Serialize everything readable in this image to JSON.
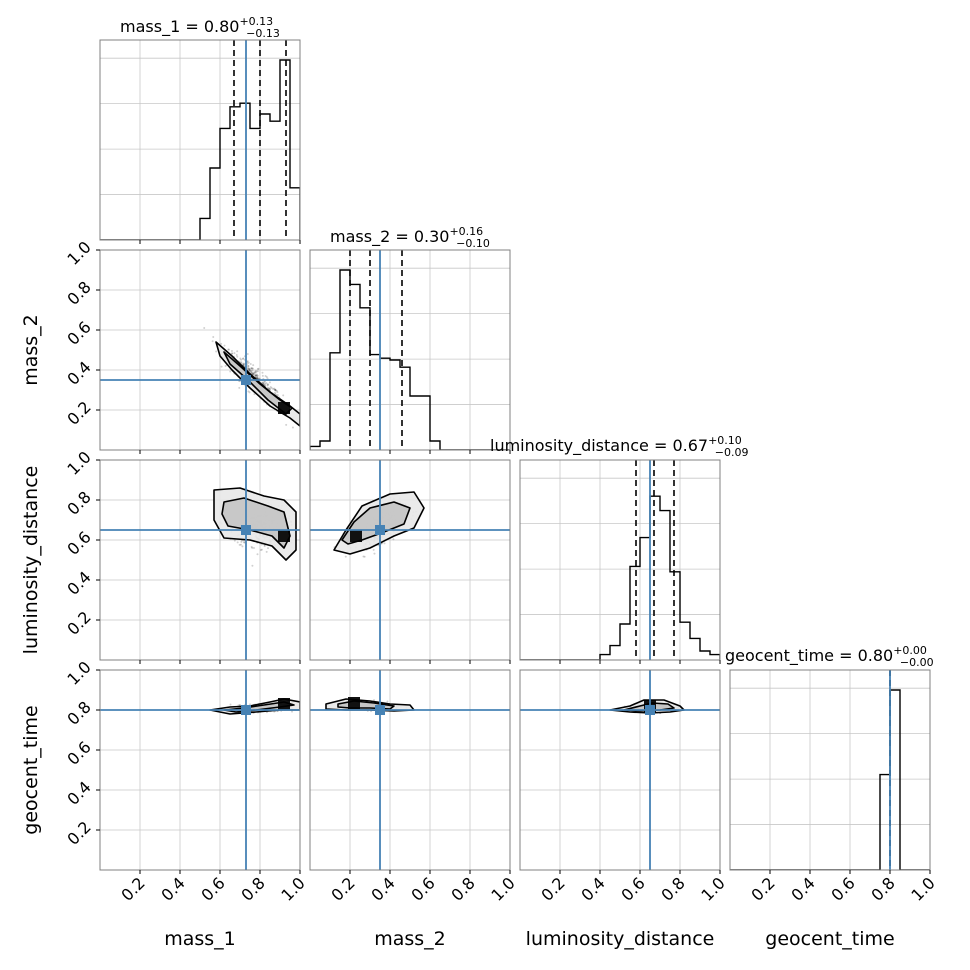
{
  "chart_data": {
    "type": "corner",
    "parameters": [
      "mass_1",
      "mass_2",
      "luminosity_distance",
      "geocent_time"
    ],
    "axis_range": [
      0.0,
      1.0
    ],
    "tick_values": [
      0.2,
      0.4,
      0.6,
      0.8,
      1.0
    ],
    "tick_labels": [
      "0.2",
      "0.4",
      "0.6",
      "0.8",
      "1.0"
    ],
    "grid": true,
    "truths": [
      0.73,
      0.35,
      0.65,
      0.8
    ],
    "colors": {
      "truth": "#4682b4",
      "hist": "#000000",
      "grid": "#c8c8c8",
      "frame": "#808080",
      "density_dark": "#000000",
      "density_light": "#f0f0f0"
    },
    "titles": [
      {
        "name": "mass_1",
        "median": "0.80",
        "plus": "+0.13",
        "minus": "−0.13"
      },
      {
        "name": "mass_2",
        "median": "0.30",
        "plus": "+0.16",
        "minus": "−0.10"
      },
      {
        "name": "luminosity_distance",
        "median": "0.67",
        "plus": "+0.10",
        "minus": "−0.09"
      },
      {
        "name": "geocent_time",
        "median": "0.80",
        "plus": "+0.00",
        "minus": "−0.00"
      }
    ],
    "diagonal": [
      {
        "param": "mass_1",
        "bin_edges": [
          0.5,
          0.55,
          0.6,
          0.65,
          0.7,
          0.75,
          0.8,
          0.85,
          0.9,
          0.95,
          1.0
        ],
        "heights": [
          0.12,
          0.4,
          0.62,
          0.74,
          0.76,
          0.62,
          0.7,
          0.66,
          1.0,
          0.29
        ],
        "quantiles": [
          0.67,
          0.8,
          0.93
        ]
      },
      {
        "param": "mass_2",
        "bin_edges": [
          0.0,
          0.05,
          0.1,
          0.15,
          0.2,
          0.25,
          0.3,
          0.35,
          0.4,
          0.45,
          0.5,
          0.55,
          0.6,
          0.65
        ],
        "heights": [
          0.02,
          0.05,
          0.54,
          1.0,
          0.92,
          0.79,
          0.53,
          0.51,
          0.5,
          0.46,
          0.3,
          0.3,
          0.05
        ],
        "quantiles": [
          0.2,
          0.3,
          0.46
        ]
      },
      {
        "param": "luminosity_distance",
        "bin_edges": [
          0.4,
          0.45,
          0.5,
          0.55,
          0.6,
          0.65,
          0.7,
          0.75,
          0.8,
          0.85,
          0.9,
          0.95,
          1.0
        ],
        "heights": [
          0.03,
          0.08,
          0.2,
          0.52,
          0.68,
          0.91,
          0.83,
          0.49,
          0.21,
          0.12,
          0.05,
          0.03
        ],
        "quantiles": [
          0.58,
          0.67,
          0.77
        ]
      },
      {
        "param": "geocent_time",
        "bin_edges": [
          0.75,
          0.8,
          0.85
        ],
        "heights": [
          0.53,
          1.0
        ],
        "quantiles": [
          0.8,
          0.8,
          0.8
        ]
      }
    ],
    "pairs": [
      {
        "x": "mass_1",
        "y": "mass_2",
        "points_center": [
          0.77,
          0.35
        ],
        "points_spread": [
          0.13,
          0.13
        ],
        "points_corr": -0.9,
        "contours": [
          [
            [
              0.58,
              0.54
            ],
            [
              0.66,
              0.47
            ],
            [
              0.75,
              0.38
            ],
            [
              0.85,
              0.29
            ],
            [
              0.95,
              0.22
            ],
            [
              1.0,
              0.18
            ],
            [
              1.0,
              0.12
            ],
            [
              0.95,
              0.16
            ],
            [
              0.85,
              0.22
            ],
            [
              0.75,
              0.31
            ],
            [
              0.66,
              0.4
            ],
            [
              0.6,
              0.47
            ]
          ],
          [
            [
              0.62,
              0.49
            ],
            [
              0.7,
              0.42
            ],
            [
              0.8,
              0.33
            ],
            [
              0.9,
              0.25
            ],
            [
              0.96,
              0.21
            ],
            [
              0.93,
              0.18
            ],
            [
              0.84,
              0.25
            ],
            [
              0.74,
              0.35
            ],
            [
              0.65,
              0.43
            ]
          ]
        ],
        "density_center": [
          0.92,
          0.21
        ]
      },
      {
        "x": "mass_1",
        "y": "luminosity_distance",
        "points_center": [
          0.8,
          0.67
        ],
        "points_spread": [
          0.12,
          0.09
        ],
        "points_corr": 0.0,
        "contours": [
          [
            [
              0.57,
              0.85
            ],
            [
              0.7,
              0.86
            ],
            [
              0.82,
              0.82
            ],
            [
              0.92,
              0.8
            ],
            [
              0.98,
              0.74
            ],
            [
              0.98,
              0.55
            ],
            [
              0.93,
              0.5
            ],
            [
              0.86,
              0.57
            ],
            [
              0.75,
              0.6
            ],
            [
              0.62,
              0.61
            ],
            [
              0.57,
              0.7
            ]
          ],
          [
            [
              0.62,
              0.79
            ],
            [
              0.72,
              0.81
            ],
            [
              0.84,
              0.77
            ],
            [
              0.92,
              0.74
            ],
            [
              0.95,
              0.62
            ],
            [
              0.92,
              0.56
            ],
            [
              0.86,
              0.62
            ],
            [
              0.75,
              0.65
            ],
            [
              0.64,
              0.67
            ],
            [
              0.61,
              0.73
            ]
          ]
        ],
        "density_center": [
          0.92,
          0.62
        ]
      },
      {
        "x": "mass_2",
        "y": "luminosity_distance",
        "points_center": [
          0.35,
          0.67
        ],
        "points_spread": [
          0.11,
          0.09
        ],
        "points_corr": 0.6,
        "contours": [
          [
            [
              0.12,
              0.55
            ],
            [
              0.18,
              0.65
            ],
            [
              0.26,
              0.77
            ],
            [
              0.4,
              0.83
            ],
            [
              0.52,
              0.84
            ],
            [
              0.57,
              0.76
            ],
            [
              0.52,
              0.66
            ],
            [
              0.42,
              0.62
            ],
            [
              0.3,
              0.56
            ],
            [
              0.2,
              0.53
            ]
          ],
          [
            [
              0.16,
              0.6
            ],
            [
              0.22,
              0.69
            ],
            [
              0.3,
              0.76
            ],
            [
              0.42,
              0.79
            ],
            [
              0.5,
              0.76
            ],
            [
              0.47,
              0.68
            ],
            [
              0.37,
              0.64
            ],
            [
              0.26,
              0.6
            ],
            [
              0.19,
              0.58
            ]
          ]
        ],
        "density_center": [
          0.23,
          0.62
        ]
      },
      {
        "x": "mass_1",
        "y": "geocent_time",
        "points_center": [
          0.82,
          0.81
        ],
        "points_spread": [
          0.09,
          0.015
        ],
        "points_corr": 0.0,
        "contours": [
          [
            [
              0.55,
              0.8
            ],
            [
              0.65,
              0.815
            ],
            [
              0.75,
              0.82
            ],
            [
              0.85,
              0.84
            ],
            [
              0.92,
              0.855
            ],
            [
              1.0,
              0.84
            ],
            [
              1.0,
              0.8
            ],
            [
              0.9,
              0.8
            ],
            [
              0.78,
              0.79
            ],
            [
              0.65,
              0.78
            ]
          ],
          [
            [
              0.62,
              0.8
            ],
            [
              0.72,
              0.81
            ],
            [
              0.82,
              0.825
            ],
            [
              0.92,
              0.84
            ],
            [
              0.97,
              0.825
            ],
            [
              0.9,
              0.815
            ],
            [
              0.78,
              0.8
            ],
            [
              0.68,
              0.79
            ]
          ]
        ],
        "density_center": [
          0.92,
          0.83
        ]
      },
      {
        "x": "mass_2",
        "y": "geocent_time",
        "points_center": [
          0.3,
          0.82
        ],
        "points_spread": [
          0.1,
          0.015
        ],
        "points_corr": 0.0,
        "contours": [
          [
            [
              0.08,
              0.83
            ],
            [
              0.18,
              0.855
            ],
            [
              0.3,
              0.845
            ],
            [
              0.4,
              0.83
            ],
            [
              0.5,
              0.825
            ],
            [
              0.52,
              0.8
            ],
            [
              0.42,
              0.795
            ],
            [
              0.3,
              0.8
            ],
            [
              0.18,
              0.8
            ],
            [
              0.08,
              0.805
            ]
          ],
          [
            [
              0.14,
              0.83
            ],
            [
              0.22,
              0.845
            ],
            [
              0.32,
              0.835
            ],
            [
              0.42,
              0.82
            ],
            [
              0.4,
              0.805
            ],
            [
              0.3,
              0.81
            ],
            [
              0.2,
              0.81
            ],
            [
              0.14,
              0.815
            ]
          ]
        ],
        "density_center": [
          0.22,
          0.835
        ]
      },
      {
        "x": "luminosity_distance",
        "y": "geocent_time",
        "points_center": [
          0.67,
          0.81
        ],
        "points_spread": [
          0.09,
          0.015
        ],
        "points_corr": 0.0,
        "contours": [
          [
            [
              0.45,
              0.8
            ],
            [
              0.55,
              0.82
            ],
            [
              0.62,
              0.85
            ],
            [
              0.72,
              0.85
            ],
            [
              0.8,
              0.82
            ],
            [
              0.82,
              0.8
            ],
            [
              0.75,
              0.79
            ],
            [
              0.65,
              0.785
            ],
            [
              0.55,
              0.79
            ]
          ],
          [
            [
              0.52,
              0.8
            ],
            [
              0.6,
              0.82
            ],
            [
              0.66,
              0.835
            ],
            [
              0.74,
              0.83
            ],
            [
              0.77,
              0.81
            ],
            [
              0.7,
              0.8
            ],
            [
              0.6,
              0.795
            ]
          ]
        ],
        "density_center": [
          0.65,
          0.82
        ]
      }
    ]
  }
}
